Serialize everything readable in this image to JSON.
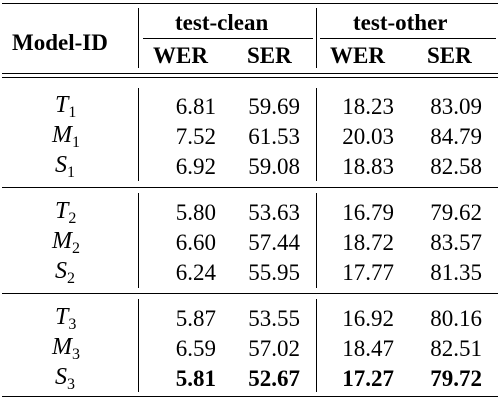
{
  "table": {
    "model_header": "Model-ID",
    "groups": [
      {
        "label": "test-clean",
        "cols": [
          "WER",
          "SER"
        ]
      },
      {
        "label": "test-other",
        "cols": [
          "WER",
          "SER"
        ]
      }
    ],
    "blocks": [
      {
        "rows": [
          {
            "id": "T",
            "sub": "1",
            "vals": [
              "6.81",
              "59.69",
              "18.23",
              "83.09"
            ]
          },
          {
            "id": "M",
            "sub": "1",
            "vals": [
              "7.52",
              "61.53",
              "20.03",
              "84.79"
            ]
          },
          {
            "id": "S",
            "sub": "1",
            "vals": [
              "6.92",
              "59.08",
              "18.83",
              "82.58"
            ]
          }
        ]
      },
      {
        "rows": [
          {
            "id": "T",
            "sub": "2",
            "vals": [
              "5.80",
              "53.63",
              "16.79",
              "79.62"
            ]
          },
          {
            "id": "M",
            "sub": "2",
            "vals": [
              "6.60",
              "57.44",
              "18.72",
              "83.57"
            ]
          },
          {
            "id": "S",
            "sub": "2",
            "vals": [
              "6.24",
              "55.95",
              "17.77",
              "81.35"
            ]
          }
        ]
      },
      {
        "rows": [
          {
            "id": "T",
            "sub": "3",
            "vals": [
              "5.87",
              "53.55",
              "16.92",
              "80.16"
            ]
          },
          {
            "id": "M",
            "sub": "3",
            "vals": [
              "6.59",
              "57.02",
              "18.47",
              "82.51"
            ]
          },
          {
            "id": "S",
            "sub": "3",
            "vals": [
              "5.81",
              "52.67",
              "17.27",
              "79.72"
            ],
            "bold": true
          }
        ]
      }
    ]
  }
}
